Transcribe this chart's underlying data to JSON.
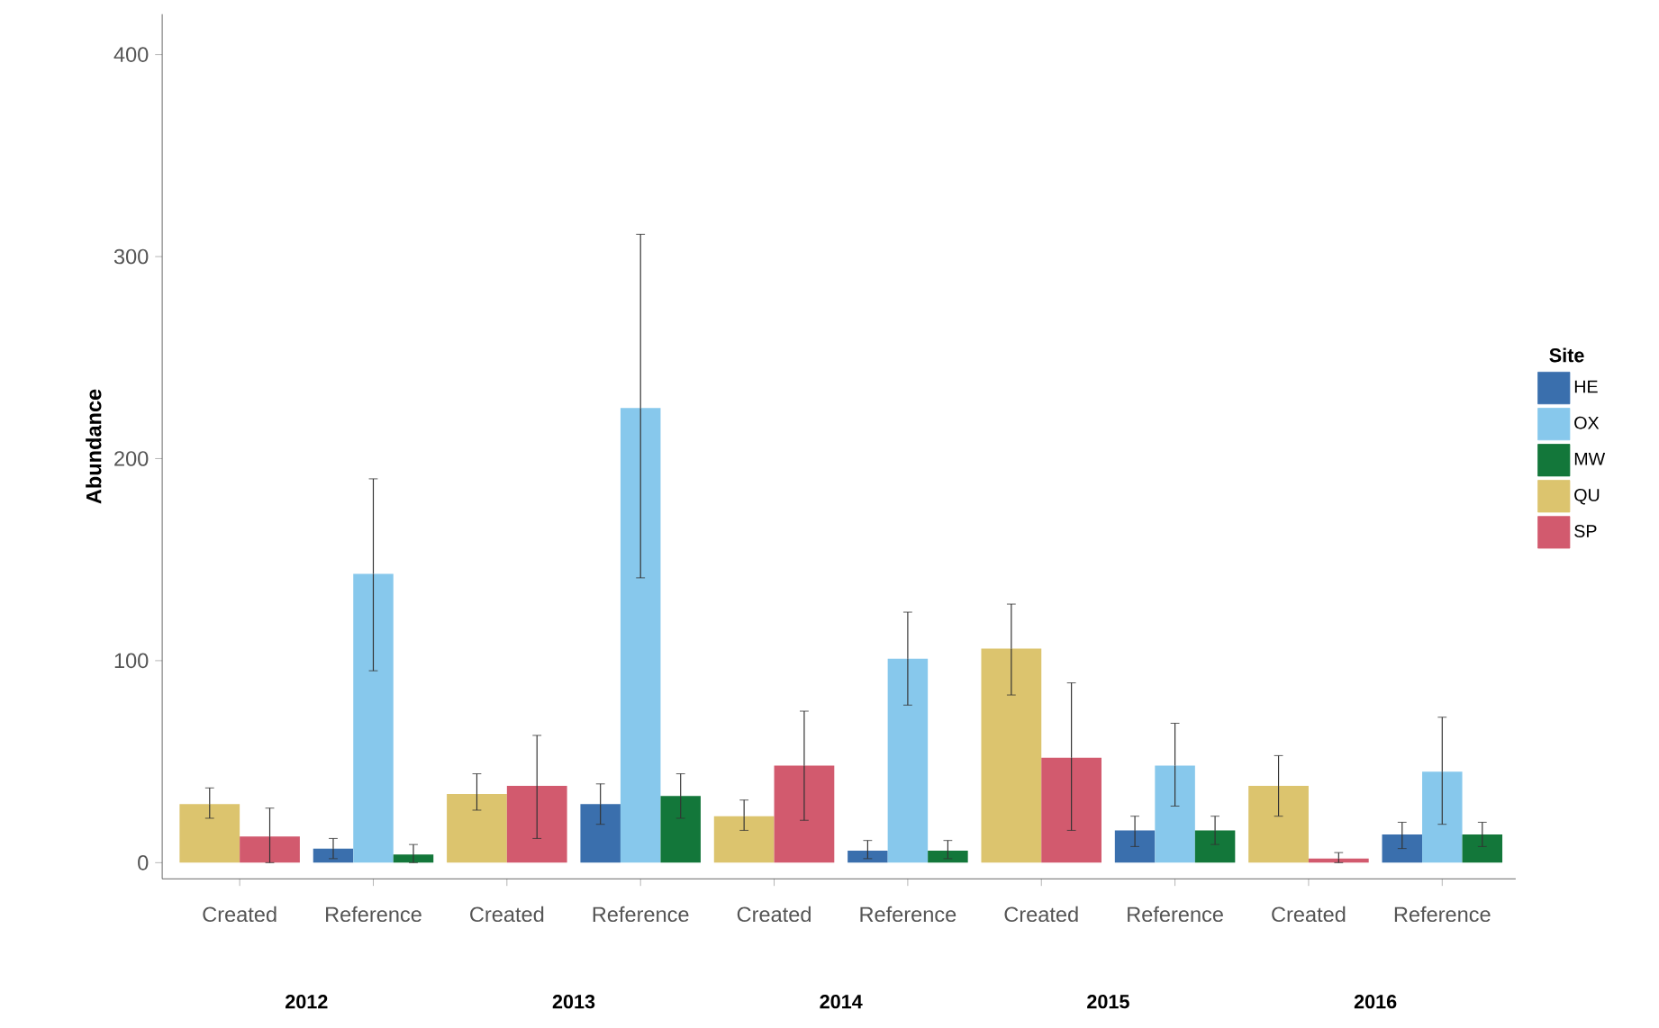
{
  "chart_data": {
    "type": "bar",
    "ylabel": "Abundance",
    "legend_title": "Site",
    "legend": "right",
    "grid": false,
    "categories": [
      "Created",
      "Reference",
      "Created",
      "Reference",
      "Created",
      "Reference",
      "Created",
      "Reference",
      "Created",
      "Reference"
    ],
    "annotations": [
      "2012",
      "2013",
      "2014",
      "2015",
      "2016"
    ],
    "ylim": [
      -8,
      420
    ],
    "yticks": [
      0,
      100,
      200,
      300,
      400
    ],
    "series": [
      {
        "name": "HE",
        "color": "#3a6fad",
        "values": [
          null,
          7,
          null,
          29,
          null,
          6,
          null,
          16,
          null,
          14
        ],
        "errors": [
          null,
          [
            2,
            12
          ],
          null,
          [
            19,
            39
          ],
          null,
          [
            2,
            11
          ],
          null,
          [
            8,
            23
          ],
          null,
          [
            7,
            20
          ]
        ]
      },
      {
        "name": "OX",
        "color": "#87c8ec",
        "values": [
          null,
          143,
          null,
          225,
          null,
          101,
          null,
          48,
          null,
          45
        ],
        "errors": [
          null,
          [
            95,
            190
          ],
          null,
          [
            141,
            311
          ],
          null,
          [
            78,
            124
          ],
          null,
          [
            28,
            69
          ],
          null,
          [
            19,
            72
          ]
        ]
      },
      {
        "name": "MW",
        "color": "#13773a",
        "values": [
          null,
          4,
          null,
          33,
          null,
          6,
          null,
          16,
          null,
          14
        ],
        "errors": [
          null,
          [
            0,
            9
          ],
          null,
          [
            22,
            44
          ],
          null,
          [
            2,
            11
          ],
          null,
          [
            9,
            23
          ],
          null,
          [
            8,
            20
          ]
        ]
      },
      {
        "name": "QU",
        "color": "#dcc46e",
        "values": [
          29,
          null,
          34,
          null,
          23,
          null,
          106,
          null,
          38,
          null
        ],
        "errors": [
          [
            22,
            37
          ],
          null,
          [
            26,
            44
          ],
          null,
          [
            16,
            31
          ],
          null,
          [
            83,
            128
          ],
          null,
          [
            23,
            53
          ],
          null
        ]
      },
      {
        "name": "SP",
        "color": "#d25a6e",
        "values": [
          13,
          null,
          38,
          null,
          48,
          null,
          52,
          null,
          2,
          null
        ],
        "errors": [
          [
            0,
            27
          ],
          null,
          [
            12,
            63
          ],
          null,
          [
            21,
            75
          ],
          null,
          [
            16,
            89
          ],
          null,
          [
            0,
            5
          ],
          null
        ]
      }
    ]
  }
}
